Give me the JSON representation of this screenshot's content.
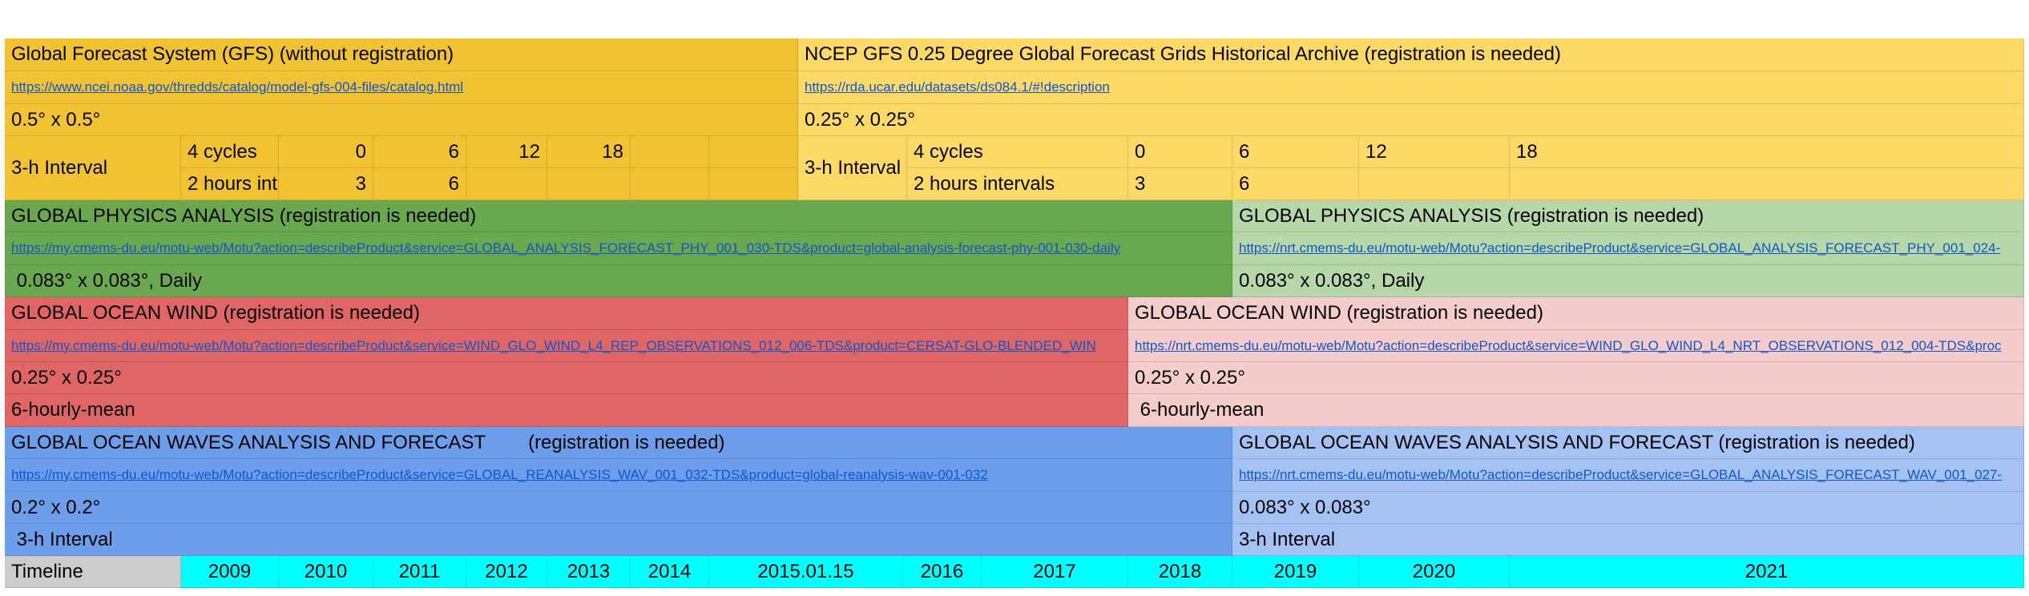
{
  "gfs": {
    "title": "Global Forecast System (GFS) (without registration)",
    "url": "https://www.ncei.noaa.gov/thredds/catalog/model-gfs-004-files/catalog.html",
    "resolution": "0.5° x 0.5°",
    "interval": "3-h Interval",
    "cycles_label": "4 cycles",
    "cycles": [
      "0",
      "6",
      "12",
      "18"
    ],
    "hours_label": "2 hours int",
    "hours": [
      "3",
      "6"
    ]
  },
  "ncep": {
    "title": "NCEP GFS 0.25 Degree Global Forecast Grids Historical Archive (registration is needed)",
    "url": "https://rda.ucar.edu/datasets/ds084.1/#!description",
    "resolution": "0.25° x 0.25°",
    "interval": "3-h Interval",
    "cycles_label": "4 cycles",
    "cycles": [
      "0",
      "6",
      "12",
      "18"
    ],
    "hours_label": "2 hours intervals",
    "hours": [
      "3",
      "6"
    ]
  },
  "physics_rep": {
    "title": "GLOBAL PHYSICS ANALYSIS (registration is needed)",
    "url": "https://my.cmems-du.eu/motu-web/Motu?action=describeProduct&service=GLOBAL_ANALYSIS_FORECAST_PHY_001_030-TDS&product=global-analysis-forecast-phy-001-030-daily",
    "resolution": " 0.083° x 0.083°, Daily"
  },
  "physics_nrt": {
    "title": "GLOBAL PHYSICS ANALYSIS (registration is needed)",
    "url": "https://nrt.cmems-du.eu/motu-web/Motu?action=describeProduct&service=GLOBAL_ANALYSIS_FORECAST_PHY_001_024-",
    "resolution": "0.083° x 0.083°, Daily"
  },
  "wind_rep": {
    "title": "GLOBAL OCEAN WIND (registration is needed)",
    "url": "https://my.cmems-du.eu/motu-web/Motu?action=describeProduct&service=WIND_GLO_WIND_L4_REP_OBSERVATIONS_012_006-TDS&product=CERSAT-GLO-BLENDED_WIN",
    "resolution": "0.25° x 0.25°",
    "interval": "6-hourly-mean"
  },
  "wind_nrt": {
    "title": "GLOBAL OCEAN WIND (registration is needed)",
    "url": "https://nrt.cmems-du.eu/motu-web/Motu?action=describeProduct&service=WIND_GLO_WIND_L4_NRT_OBSERVATIONS_012_004-TDS&proc",
    "resolution": "0.25° x 0.25°",
    "interval": " 6-hourly-mean"
  },
  "waves_rep": {
    "title": "GLOBAL OCEAN WAVES ANALYSIS AND FORECAST        (registration is needed)",
    "url": "https://my.cmems-du.eu/motu-web/Motu?action=describeProduct&service=GLOBAL_REANALYSIS_WAV_001_032-TDS&product=global-reanalysis-wav-001-032",
    "resolution": "0.2° x 0.2°",
    "interval": " 3-h Interval"
  },
  "waves_nrt": {
    "title": "GLOBAL OCEAN WAVES ANALYSIS AND FORECAST (registration is needed)",
    "url": "https://nrt.cmems-du.eu/motu-web/Motu?action=describeProduct&service=GLOBAL_ANALYSIS_FORECAST_WAV_001_027-",
    "resolution": "0.083° x 0.083°",
    "interval": "3-h Interval"
  },
  "timeline": {
    "label": "Timeline",
    "years": [
      "2009",
      "2010",
      "2011",
      "2012",
      "2013",
      "2014",
      "2015.01.15",
      "2016",
      "2017",
      "2018",
      "2019",
      "2020",
      "2021"
    ]
  },
  "colors": {
    "gfs": "#f1c232",
    "ncep": "#ffd966",
    "physics_rep": "#6aa84f",
    "physics_nrt": "#b6d7a8",
    "wind_rep": "#e06666",
    "wind_nrt": "#f4cccc",
    "waves_rep": "#6d9eeb",
    "waves_nrt": "#a4c2f4",
    "timeline_label": "#cccccc",
    "timeline_years": "#00ffff",
    "link": "#1155cc"
  }
}
